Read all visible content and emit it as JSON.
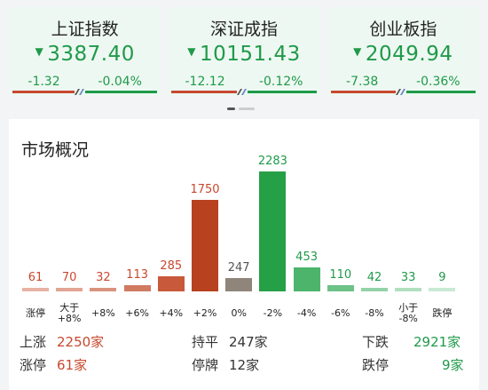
{
  "indices": [
    {
      "name": "上证指数",
      "value": "3387.40",
      "change": "-1.32",
      "pct": "-0.04%",
      "up_ratio": 0.43
    },
    {
      "name": "深证成指",
      "value": "10151.43",
      "change": "-12.12",
      "pct": "-0.12%",
      "up_ratio": 0.45
    },
    {
      "name": "创业板指",
      "value": "2049.94",
      "change": "-7.38",
      "pct": "-0.36%",
      "up_ratio": 0.45
    }
  ],
  "arrow_glyph": "▼",
  "panel": {
    "title": "市场概况"
  },
  "chart_data": {
    "type": "bar",
    "categories": [
      "涨停",
      "大于\n+8%",
      "+8%",
      "+6%",
      "+4%",
      "+2%",
      "0%",
      "-2%",
      "-4%",
      "-6%",
      "-8%",
      "小于\n-8%",
      "跌停"
    ],
    "values": [
      61,
      70,
      32,
      113,
      285,
      1750,
      247,
      2283,
      453,
      110,
      42,
      33,
      9
    ],
    "colors": [
      "#e7b3a4",
      "#e2a493",
      "#d9937f",
      "#d07a61",
      "#c8593b",
      "#b8411f",
      "#8f857a",
      "#26a046",
      "#4db46c",
      "#6cc287",
      "#93d3a7",
      "#b1dfbf",
      "#c9e9d3"
    ]
  },
  "summary": {
    "rise_label": "上涨",
    "rise_value": "2250家",
    "flat_label": "持平",
    "flat_value": "247家",
    "fall_label": "下跌",
    "fall_value": "2921家",
    "limit_up_label": "涨停",
    "limit_up_value": "61家",
    "suspend_label": "停牌",
    "suspend_value": "12家",
    "limit_down_label": "跌停",
    "limit_down_value": "9家"
  },
  "colors": {
    "up": "#c8482f",
    "down": "#1f9a4a",
    "card_bg": "#eef8f2"
  }
}
